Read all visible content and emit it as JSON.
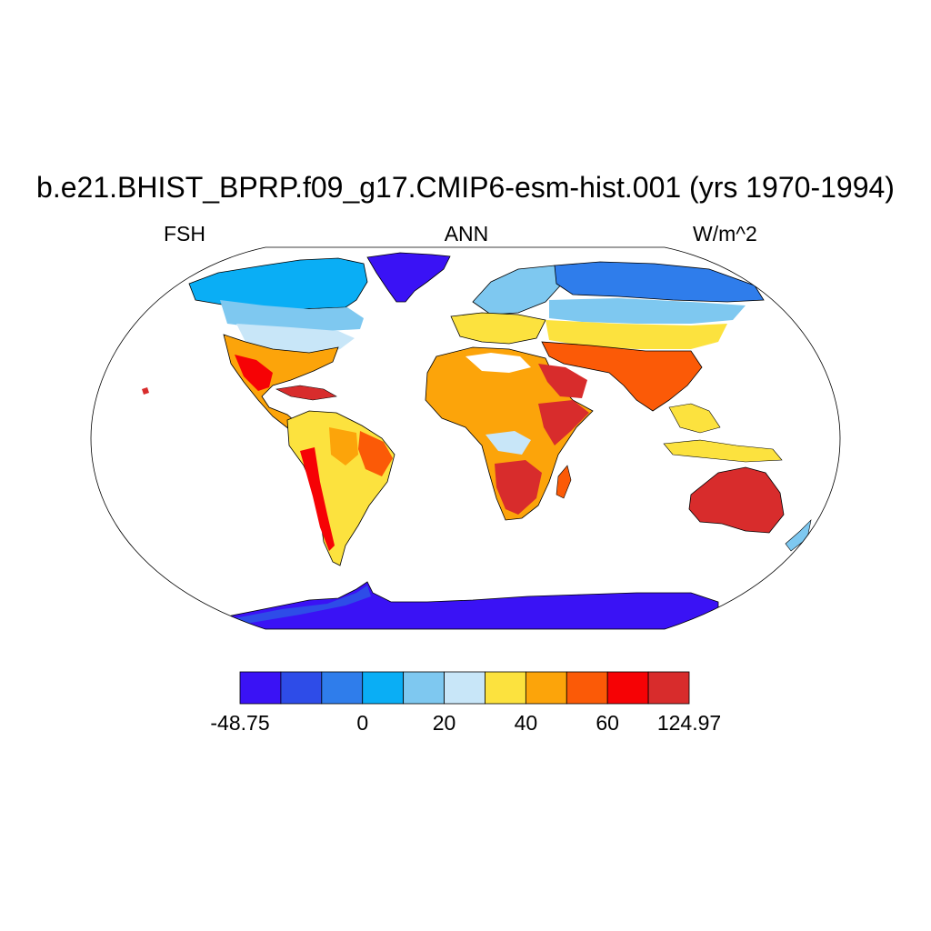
{
  "title": "b.e21.BHIST_BPRP.f09_g17.CMIP6-esm-hist.001 (yrs 1970-1994)",
  "subtitle_left": "FSH",
  "subtitle_center": "ANN",
  "subtitle_right": "W/m^2",
  "map": {
    "projection": "Robinson",
    "variable": "FSH",
    "season": "ANN",
    "units": "W/m^2"
  },
  "colorbar": {
    "colors": [
      "#3a12f5",
      "#2e4ce8",
      "#2f7deb",
      "#0aaef5",
      "#7ec8f0",
      "#c8e6f8",
      "#fce23e",
      "#fca40a",
      "#fb5a07",
      "#f60205",
      "#d82c2c"
    ],
    "labels": [
      {
        "text": "-48.75",
        "edge": 0
      },
      {
        "text": "0",
        "edge": 3
      },
      {
        "text": "20",
        "edge": 5
      },
      {
        "text": "40",
        "edge": 7
      },
      {
        "text": "60",
        "edge": 9
      },
      {
        "text": "124.97",
        "edge": 11
      }
    ]
  }
}
